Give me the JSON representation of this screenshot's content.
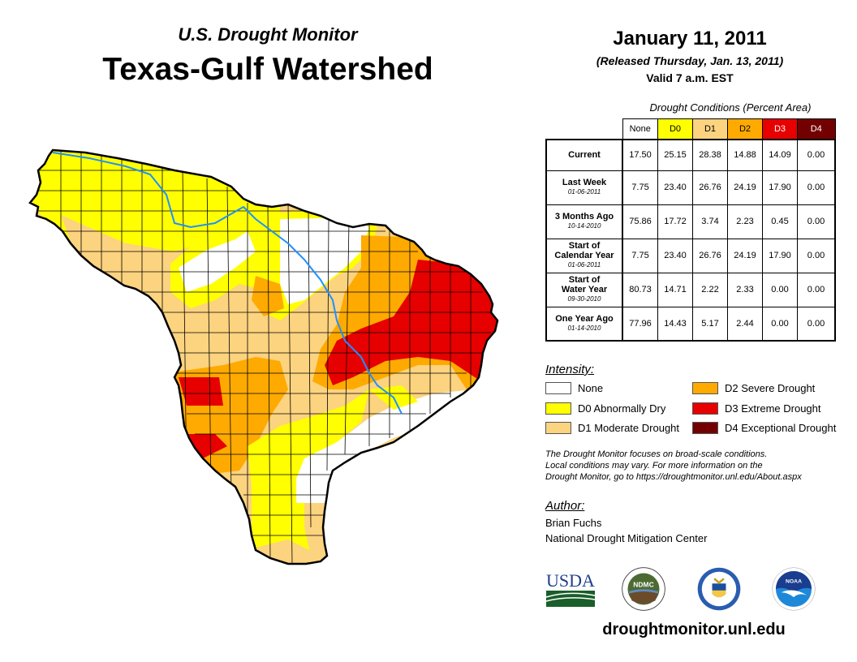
{
  "header": {
    "subtitle": "U.S. Drought Monitor",
    "title": "Texas-Gulf Watershed",
    "date": "January 11, 2011",
    "released": "(Released Thursday, Jan. 13, 2011)",
    "valid": "Valid 7 a.m. EST"
  },
  "colors": {
    "none": "#ffffff",
    "d0": "#ffff00",
    "d1": "#fcd37f",
    "d2": "#ffaa00",
    "d3": "#e60000",
    "d4": "#730000",
    "river": "#1e90ff"
  },
  "table": {
    "caption": "Drought Conditions (Percent Area)",
    "columns": [
      "None",
      "D0",
      "D1",
      "D2",
      "D3",
      "D4"
    ],
    "rows": [
      {
        "label": "Current",
        "date": "",
        "values": [
          "17.50",
          "25.15",
          "28.38",
          "14.88",
          "14.09",
          "0.00"
        ]
      },
      {
        "label": "Last Week",
        "date": "01-06-2011",
        "values": [
          "7.75",
          "23.40",
          "26.76",
          "24.19",
          "17.90",
          "0.00"
        ]
      },
      {
        "label": "3 Months Ago",
        "date": "10-14-2010",
        "values": [
          "75.86",
          "17.72",
          "3.74",
          "2.23",
          "0.45",
          "0.00"
        ]
      },
      {
        "label": "Start of Calendar Year",
        "label1": "Start of",
        "label2": "Calendar Year",
        "date": "01-06-2011",
        "values": [
          "7.75",
          "23.40",
          "26.76",
          "24.19",
          "17.90",
          "0.00"
        ]
      },
      {
        "label": "Start of Water Year",
        "label1": "Start of",
        "label2": "Water Year",
        "date": "09-30-2010",
        "values": [
          "80.73",
          "14.71",
          "2.22",
          "2.33",
          "0.00",
          "0.00"
        ]
      },
      {
        "label": "One Year Ago",
        "date": "01-14-2010",
        "values": [
          "77.96",
          "14.43",
          "5.17",
          "2.44",
          "0.00",
          "0.00"
        ]
      }
    ]
  },
  "legend": {
    "title": "Intensity:",
    "items": [
      {
        "label": "None",
        "color": "#ffffff"
      },
      {
        "label": "D0 Abnormally Dry",
        "color": "#ffff00"
      },
      {
        "label": "D1 Moderate Drought",
        "color": "#fcd37f"
      },
      {
        "label": "D2 Severe Drought",
        "color": "#ffaa00"
      },
      {
        "label": "D3 Extreme Drought",
        "color": "#e60000"
      },
      {
        "label": "D4 Exceptional Drought",
        "color": "#730000"
      }
    ]
  },
  "note": {
    "line1": "The Drought Monitor focuses on broad-scale conditions.",
    "line2": "Local conditions may vary. For more information on the",
    "line3": "Drought Monitor, go to https://droughtmonitor.unl.edu/About.aspx"
  },
  "author": {
    "title": "Author:",
    "name": "Brian Fuchs",
    "org": "National Drought Mitigation Center"
  },
  "logos": {
    "usda": "USDA",
    "ndmc": "NDMC",
    "noaa": "NOAA"
  },
  "website": "droughtmonitor.unl.edu"
}
